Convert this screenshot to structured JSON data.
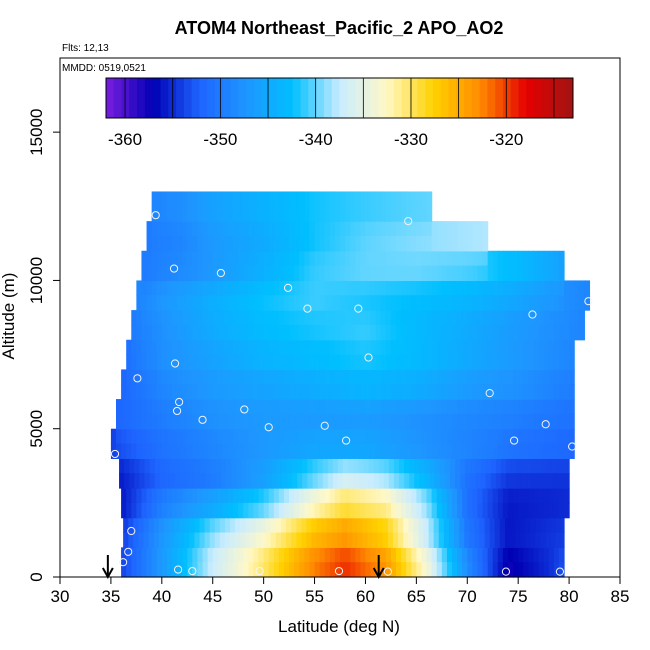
{
  "header": {
    "title": "ATOM4 Northeast_Pacific_2 APO_AO2",
    "flights": "Flts: 12,13",
    "mmdd": "MMDD: 0519,0521"
  },
  "chart_data": {
    "type": "heatmap",
    "title": "ATOM4 Northeast_Pacific_2 APO_AO2",
    "xlabel": "Latitude (deg N)",
    "ylabel": "Altitude (m)",
    "xlim": [
      30,
      85
    ],
    "ylim": [
      0,
      17500
    ],
    "x_ticks": [
      "30",
      "35",
      "40",
      "45",
      "50",
      "55",
      "60",
      "65",
      "70",
      "75",
      "80",
      "85"
    ],
    "y_ticks": [
      "0",
      "5000",
      "10000",
      "15000"
    ],
    "colorbar": {
      "range": [
        -362,
        -313
      ],
      "ticks": [
        "-360",
        "-350",
        "-340",
        "-330",
        "-320"
      ],
      "tick_values": [
        -360,
        -350,
        -340,
        -330,
        -320
      ],
      "colors": [
        "#7b1fe0",
        "#0000b4",
        "#1e64ff",
        "#1e96ff",
        "#00bfff",
        "#c8ecff",
        "#fff8c8",
        "#ffd200",
        "#ff8c00",
        "#e60000",
        "#a01414"
      ]
    },
    "curtain": {
      "altitude_levels": [
        0,
        1000,
        2000,
        3000,
        4000,
        5000,
        6000,
        7000,
        8000,
        9000,
        10000,
        11000,
        12000
      ],
      "rows": [
        {
          "alt": 0,
          "lat_min": 36.0,
          "lat_max": 79.5,
          "profile": [
            [
              36,
              -354
            ],
            [
              40,
              -347
            ],
            [
              45,
              -337
            ],
            [
              50,
              -330
            ],
            [
              55,
              -322
            ],
            [
              58,
              -319
            ],
            [
              62,
              -323
            ],
            [
              66,
              -333
            ],
            [
              70,
              -348
            ],
            [
              74,
              -358
            ],
            [
              78,
              -355
            ],
            [
              79.5,
              -353
            ]
          ]
        },
        {
          "alt": 1000,
          "lat_min": 36.2,
          "lat_max": 79.5,
          "profile": [
            [
              36,
              -354
            ],
            [
              40,
              -347
            ],
            [
              45,
              -338
            ],
            [
              50,
              -332
            ],
            [
              55,
              -325
            ],
            [
              58,
              -323
            ],
            [
              62,
              -327
            ],
            [
              66,
              -337
            ],
            [
              70,
              -350
            ],
            [
              74,
              -356
            ],
            [
              79.5,
              -354
            ]
          ]
        },
        {
          "alt": 2000,
          "lat_min": 36.0,
          "lat_max": 80.0,
          "profile": [
            [
              36,
              -356
            ],
            [
              40,
              -349
            ],
            [
              45,
              -344
            ],
            [
              50,
              -339
            ],
            [
              55,
              -331
            ],
            [
              58,
              -328
            ],
            [
              62,
              -330
            ],
            [
              66,
              -338
            ],
            [
              70,
              -351
            ],
            [
              74,
              -356
            ],
            [
              80,
              -355
            ]
          ]
        },
        {
          "alt": 3000,
          "lat_min": 35.8,
          "lat_max": 80.0,
          "profile": [
            [
              36,
              -356
            ],
            [
              40,
              -352
            ],
            [
              45,
              -350
            ],
            [
              50,
              -346
            ],
            [
              55,
              -339
            ],
            [
              58,
              -335
            ],
            [
              62,
              -337
            ],
            [
              66,
              -343
            ],
            [
              70,
              -351
            ],
            [
              74,
              -355
            ],
            [
              80,
              -355
            ]
          ]
        },
        {
          "alt": 4000,
          "lat_min": 35.0,
          "lat_max": 80.5,
          "profile": [
            [
              35,
              -354
            ],
            [
              40,
              -351
            ],
            [
              45,
              -349
            ],
            [
              50,
              -347
            ],
            [
              55,
              -345
            ],
            [
              60,
              -345
            ],
            [
              65,
              -347
            ],
            [
              70,
              -349
            ],
            [
              75,
              -351
            ],
            [
              80.5,
              -352
            ]
          ]
        },
        {
          "alt": 5000,
          "lat_min": 35.5,
          "lat_max": 80.5,
          "profile": [
            [
              35.5,
              -352
            ],
            [
              40,
              -350
            ],
            [
              45,
              -348
            ],
            [
              50,
              -347
            ],
            [
              55,
              -347
            ],
            [
              60,
              -347
            ],
            [
              65,
              -348
            ],
            [
              70,
              -349
            ],
            [
              75,
              -350
            ],
            [
              80.5,
              -351
            ]
          ]
        },
        {
          "alt": 6000,
          "lat_min": 36.0,
          "lat_max": 80.5,
          "profile": [
            [
              36,
              -352
            ],
            [
              40,
              -349
            ],
            [
              45,
              -347
            ],
            [
              50,
              -346
            ],
            [
              55,
              -345
            ],
            [
              60,
              -344
            ],
            [
              65,
              -345
            ],
            [
              70,
              -347
            ],
            [
              75,
              -348
            ],
            [
              80.5,
              -350
            ]
          ]
        },
        {
          "alt": 7000,
          "lat_min": 36.5,
          "lat_max": 80.5,
          "profile": [
            [
              36.5,
              -351
            ],
            [
              40,
              -348
            ],
            [
              45,
              -346
            ],
            [
              50,
              -344
            ],
            [
              55,
              -343
            ],
            [
              60,
              -342
            ],
            [
              65,
              -343
            ],
            [
              70,
              -345
            ],
            [
              75,
              -347
            ],
            [
              80.5,
              -349
            ]
          ]
        },
        {
          "alt": 8000,
          "lat_min": 37.0,
          "lat_max": 81.5,
          "profile": [
            [
              37,
              -350
            ],
            [
              40,
              -348
            ],
            [
              45,
              -345
            ],
            [
              50,
              -343
            ],
            [
              55,
              -342
            ],
            [
              60,
              -341
            ],
            [
              65,
              -343
            ],
            [
              70,
              -345
            ],
            [
              75,
              -347
            ],
            [
              81.5,
              -349
            ]
          ]
        },
        {
          "alt": 9000,
          "lat_min": 37.5,
          "lat_max": 82.0,
          "profile": [
            [
              37.5,
              -349
            ],
            [
              40,
              -347
            ],
            [
              45,
              -344
            ],
            [
              50,
              -342
            ],
            [
              55,
              -341
            ],
            [
              60,
              -342
            ],
            [
              65,
              -343
            ],
            [
              70,
              -344
            ],
            [
              75,
              -346
            ],
            [
              82,
              -349
            ]
          ]
        },
        {
          "alt": 10000,
          "lat_min": 38.0,
          "lat_max": 79.5,
          "profile": [
            [
              38,
              -350
            ],
            [
              40,
              -349
            ],
            [
              45,
              -347
            ],
            [
              50,
              -344
            ],
            [
              55,
              -341
            ],
            [
              60,
              -340
            ],
            [
              65,
              -340
            ],
            [
              70,
              -341
            ],
            [
              75,
              -343
            ],
            [
              79.5,
              -346
            ]
          ]
        },
        {
          "alt": 11000,
          "lat_min": 38.5,
          "lat_max": 72.0,
          "profile": [
            [
              38.5,
              -350
            ],
            [
              42,
              -349
            ],
            [
              45,
              -347
            ],
            [
              50,
              -345
            ],
            [
              55,
              -342
            ],
            [
              60,
              -340
            ],
            [
              65,
              -339
            ],
            [
              72,
              -338
            ]
          ]
        },
        {
          "alt": 12000,
          "lat_min": 39.0,
          "lat_max": 66.5,
          "profile": [
            [
              39,
              -349
            ],
            [
              42,
              -348
            ],
            [
              45,
              -346
            ],
            [
              50,
              -344
            ],
            [
              55,
              -342
            ],
            [
              60,
              -341
            ],
            [
              66.5,
              -340
            ]
          ]
        }
      ]
    },
    "sample_points": [
      [
        39.4,
        12200
      ],
      [
        41.2,
        10400
      ],
      [
        45.8,
        10250
      ],
      [
        52.4,
        9750
      ],
      [
        54.3,
        9050
      ],
      [
        59.3,
        9050
      ],
      [
        64.2,
        12000
      ],
      [
        76.4,
        8850
      ],
      [
        81.9,
        9300
      ],
      [
        60.3,
        7400
      ],
      [
        41.3,
        7200
      ],
      [
        37.6,
        6700
      ],
      [
        41.7,
        5900
      ],
      [
        41.5,
        5600
      ],
      [
        44.0,
        5300
      ],
      [
        48.1,
        5650
      ],
      [
        50.5,
        5050
      ],
      [
        56.0,
        5100
      ],
      [
        58.1,
        4600
      ],
      [
        72.2,
        6200
      ],
      [
        77.7,
        5150
      ],
      [
        74.6,
        4600
      ],
      [
        80.3,
        4400
      ],
      [
        35.4,
        4150
      ],
      [
        37.0,
        1550
      ],
      [
        36.7,
        850
      ],
      [
        36.2,
        500
      ],
      [
        41.6,
        250
      ],
      [
        43.0,
        200
      ],
      [
        49.6,
        200
      ],
      [
        57.4,
        200
      ],
      [
        62.2,
        180
      ],
      [
        73.8,
        180
      ],
      [
        79.1,
        180
      ]
    ],
    "markers": [
      {
        "lat": 34.7,
        "direction": "down-arrow"
      },
      {
        "lat": 61.3,
        "direction": "down-arrow"
      }
    ]
  }
}
